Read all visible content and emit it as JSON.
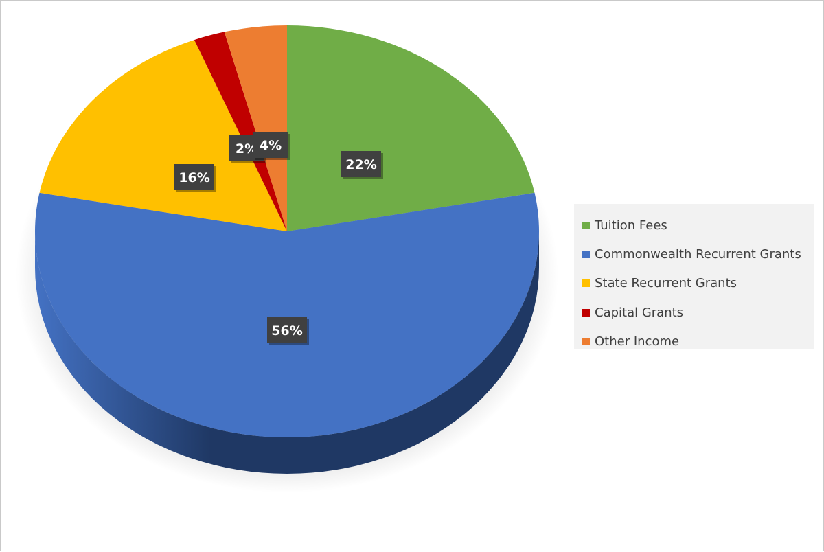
{
  "chart_data": {
    "type": "pie",
    "style": "3d",
    "categories": [
      "Tuition Fees",
      "Commonwealth Recurrent Grants",
      "State Recurrent Grants",
      "Capital Grants",
      "Other Income"
    ],
    "values": [
      22,
      56,
      16,
      2,
      4
    ],
    "data_labels": [
      "22%",
      "56%",
      "16%",
      "2%",
      "4%"
    ],
    "colors": [
      "#70ad47",
      "#4472c4",
      "#ffc000",
      "#c00000",
      "#ed7d31"
    ],
    "side_colors": [
      "#38602a",
      "#1f3864",
      "#8a6a00",
      "#6b0000",
      "#8a4514"
    ],
    "label_color": "#404040",
    "legend_position": "right",
    "title": "",
    "start": "12 o'clock, clockwise"
  }
}
